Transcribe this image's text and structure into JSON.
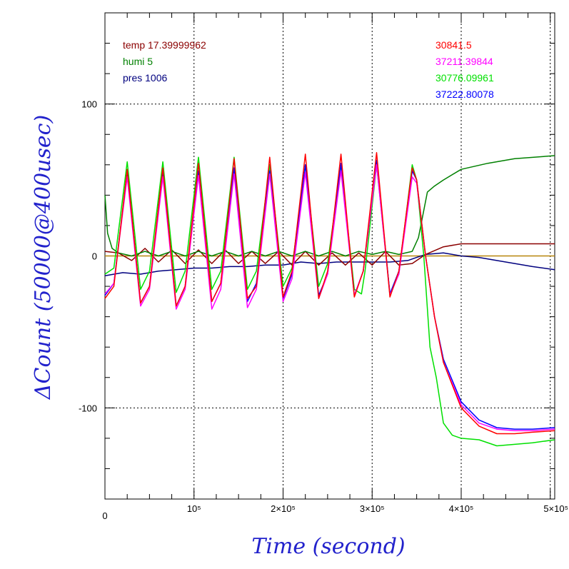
{
  "chart_data": {
    "type": "line",
    "xlabel": "Time (second)",
    "ylabel": "ΔCount (50000@400usec)",
    "xlim": [
      0,
      505000
    ],
    "ylim": [
      -160,
      160
    ],
    "grid": true,
    "x_ticks": [
      {
        "value": 0,
        "label": "0"
      },
      {
        "value": 100000,
        "label": "10⁵"
      },
      {
        "value": 200000,
        "label": "2×10⁵"
      },
      {
        "value": 300000,
        "label": "3×10⁵"
      },
      {
        "value": 400000,
        "label": "4×10⁵"
      },
      {
        "value": 500000,
        "label": "5×10⁵"
      }
    ],
    "y_ticks": [
      {
        "value": 100,
        "label": "100"
      },
      {
        "value": 0,
        "label": "0"
      },
      {
        "value": -100,
        "label": "-100"
      }
    ],
    "legend_left": [
      {
        "text": "temp 17.39999962",
        "color": "#8b0000"
      },
      {
        "text": "humi 5",
        "color": "#008000"
      },
      {
        "text": "pres 1006",
        "color": "#00007f"
      }
    ],
    "legend_right": [
      {
        "text": "30841.5",
        "color": "#ff0000"
      },
      {
        "text": "37211.39844",
        "color": "#ff00ff"
      },
      {
        "text": "30776.09961",
        "color": "#00e000"
      },
      {
        "text": "37222.80078",
        "color": "#0000ff"
      }
    ],
    "series": [
      {
        "color": "#ff0000",
        "x": [
          0,
          10000,
          25000,
          40000,
          50000,
          65000,
          80000,
          90000,
          105000,
          120000,
          130000,
          145000,
          160000,
          170000,
          185000,
          200000,
          210000,
          225000,
          240000,
          250000,
          265000,
          280000,
          290000,
          305000,
          320000,
          330000,
          345000,
          350000,
          360000,
          370000,
          380000,
          400000,
          420000,
          440000,
          460000,
          480000,
          505000
        ],
        "y": [
          -28,
          -20,
          57,
          -31,
          -20,
          58,
          -33,
          -20,
          61,
          -30,
          -18,
          64,
          -28,
          -20,
          65,
          -27,
          -10,
          67,
          -28,
          -10,
          67,
          -27,
          -10,
          68,
          -27,
          -10,
          58,
          50,
          0,
          -40,
          -70,
          -100,
          -112,
          -117,
          -117,
          -116,
          -115
        ]
      },
      {
        "color": "#ff00ff",
        "x": [
          0,
          10000,
          25000,
          40000,
          50000,
          65000,
          80000,
          90000,
          105000,
          120000,
          130000,
          145000,
          160000,
          170000,
          185000,
          200000,
          210000,
          225000,
          240000,
          250000,
          265000,
          280000,
          290000,
          305000,
          320000,
          330000,
          345000,
          350000,
          360000,
          370000,
          380000,
          400000,
          420000,
          440000,
          460000,
          480000,
          505000
        ],
        "y": [
          -25,
          -18,
          52,
          -33,
          -22,
          52,
          -35,
          -22,
          53,
          -35,
          -22,
          54,
          -34,
          -22,
          54,
          -30,
          -15,
          55,
          -28,
          -12,
          56,
          -26,
          -10,
          60,
          -26,
          -12,
          52,
          48,
          0,
          -40,
          -70,
          -98,
          -110,
          -114,
          -115,
          -115,
          -114
        ]
      },
      {
        "color": "#00e000",
        "x": [
          0,
          10000,
          25000,
          40000,
          50000,
          65000,
          80000,
          90000,
          105000,
          120000,
          130000,
          145000,
          160000,
          170000,
          185000,
          200000,
          210000,
          225000,
          240000,
          250000,
          265000,
          280000,
          288000,
          292000,
          305000,
          320000,
          330000,
          345000,
          350000,
          358000,
          365000,
          372000,
          380000,
          390000,
          400000,
          420000,
          440000,
          460000,
          480000,
          505000
        ],
        "y": [
          -12,
          -8,
          62,
          -22,
          -10,
          62,
          -24,
          -10,
          65,
          -22,
          -10,
          65,
          -22,
          -10,
          60,
          -20,
          -8,
          60,
          -20,
          -5,
          60,
          -22,
          -25,
          -10,
          60,
          -25,
          -12,
          60,
          50,
          0,
          -60,
          -80,
          -110,
          -118,
          -120,
          -121,
          -125,
          -124,
          -123,
          -121
        ]
      },
      {
        "color": "#0000ff",
        "x": [
          0,
          10000,
          25000,
          40000,
          50000,
          65000,
          80000,
          90000,
          105000,
          120000,
          130000,
          145000,
          160000,
          170000,
          185000,
          200000,
          210000,
          225000,
          240000,
          250000,
          265000,
          280000,
          290000,
          305000,
          320000,
          330000,
          345000,
          350000,
          360000,
          370000,
          380000,
          400000,
          420000,
          440000,
          460000,
          480000,
          505000
        ],
        "y": [
          -26,
          -18,
          55,
          -31,
          -20,
          55,
          -33,
          -20,
          56,
          -30,
          -18,
          58,
          -30,
          -18,
          56,
          -28,
          -12,
          60,
          -26,
          -12,
          61,
          -26,
          -10,
          63,
          -25,
          -10,
          56,
          50,
          0,
          -40,
          -68,
          -96,
          -108,
          -113,
          -114,
          -114,
          -113
        ]
      },
      {
        "color": "#008000",
        "x": [
          0,
          3000,
          8000,
          15000,
          30000,
          45000,
          60000,
          75000,
          90000,
          105000,
          120000,
          135000,
          150000,
          165000,
          180000,
          195000,
          210000,
          225000,
          240000,
          255000,
          270000,
          285000,
          300000,
          315000,
          330000,
          345000,
          352000,
          358000,
          362000,
          370000,
          380000,
          400000,
          430000,
          460000,
          505000
        ],
        "y": [
          40,
          15,
          5,
          2,
          0,
          3,
          0,
          3,
          0,
          3,
          0,
          3,
          0,
          3,
          0,
          3,
          0,
          3,
          0,
          3,
          0,
          3,
          1,
          3,
          1,
          3,
          12,
          30,
          42,
          46,
          50,
          57,
          61,
          64,
          66
        ]
      },
      {
        "color": "#8b0000",
        "x": [
          0,
          15000,
          30000,
          45000,
          60000,
          75000,
          90000,
          105000,
          120000,
          135000,
          150000,
          165000,
          180000,
          195000,
          210000,
          225000,
          240000,
          255000,
          270000,
          285000,
          300000,
          315000,
          330000,
          345000,
          360000,
          380000,
          400000,
          430000,
          460000,
          505000
        ],
        "y": [
          3,
          2,
          -3,
          5,
          -4,
          4,
          -5,
          4,
          -5,
          4,
          -5,
          3,
          -5,
          3,
          -6,
          3,
          -6,
          2,
          -6,
          2,
          -6,
          3,
          -6,
          -5,
          1,
          6,
          8,
          8,
          8,
          8
        ]
      },
      {
        "color": "#00007f",
        "x": [
          0,
          20000,
          40000,
          60000,
          80000,
          100000,
          120000,
          140000,
          160000,
          180000,
          200000,
          220000,
          240000,
          260000,
          280000,
          300000,
          320000,
          340000,
          350000,
          360000,
          380000,
          400000,
          420000,
          440000,
          460000,
          480000,
          505000
        ],
        "y": [
          -13,
          -11,
          -12,
          -10,
          -9,
          -8,
          -8,
          -7,
          -7,
          -6,
          -6,
          -4,
          -5,
          -4,
          -4,
          -4,
          -4,
          -3,
          -1,
          1,
          2,
          0,
          -1,
          -3,
          -5,
          -7,
          -9
        ]
      },
      {
        "color": "#b8860b",
        "x": [
          0,
          505000
        ],
        "y": [
          0,
          0
        ]
      }
    ]
  }
}
